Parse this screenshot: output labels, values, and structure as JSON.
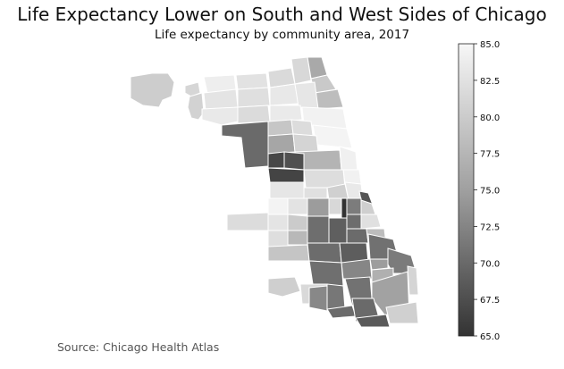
{
  "title": "Life Expectancy Lower on South and West Sides of Chicago",
  "subtitle": "Life expectancy by community area, 2017",
  "source": "Source: Chicago Health Atlas",
  "colorbar": {
    "min": 65.0,
    "max": 85.0,
    "ticks": [
      "85.0",
      "82.5",
      "80.0",
      "77.5",
      "75.0",
      "72.5",
      "70.0",
      "67.5",
      "65.0"
    ],
    "colors": {
      "low": "#3a3a3a",
      "high": "#f5f5f5"
    }
  }
}
